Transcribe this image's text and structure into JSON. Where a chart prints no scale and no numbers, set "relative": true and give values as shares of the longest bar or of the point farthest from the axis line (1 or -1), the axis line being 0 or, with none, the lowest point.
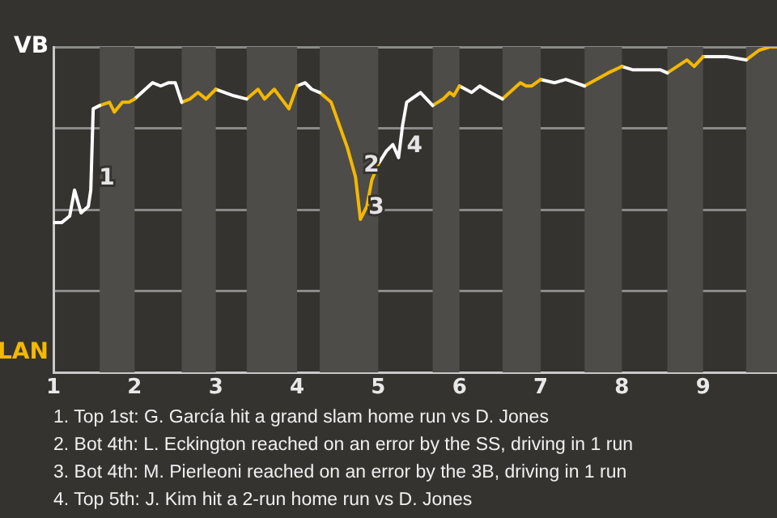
{
  "chart_data": {
    "type": "line",
    "marker": "none",
    "line_style": "solid",
    "grid": "y",
    "legend": false,
    "relative": true,
    "xlim": [
      1,
      9.91
    ],
    "xticks": [
      1,
      2,
      3,
      4,
      5,
      6,
      7,
      8,
      9
    ],
    "series": [
      {
        "name": "VB",
        "color": "#ffffff",
        "x": [
          1,
          1.1,
          1.2,
          1.26,
          1.34,
          1.43,
          1.46,
          1.49,
          1.57
        ],
        "values": [
          0.46,
          0.46,
          0.48,
          0.56,
          0.49,
          0.51,
          0.56,
          0.81,
          0.82
        ]
      },
      {
        "name": "LAN",
        "color": "#f4b800",
        "x": [
          1.57,
          1.69,
          1.75,
          1.85,
          1.93,
          2
        ],
        "values": [
          0.82,
          0.83,
          0.8,
          0.83,
          0.83,
          0.84
        ]
      },
      {
        "color": "#fefefe",
        "x": [
          2,
          2.22,
          2.32,
          2.42,
          2.5,
          2.58
        ],
        "values": [
          0.84,
          0.89,
          0.88,
          0.89,
          0.89,
          0.83
        ]
      },
      {
        "color": "#f4b800",
        "x": [
          2.58,
          2.68,
          2.78,
          2.88,
          3
        ],
        "values": [
          0.83,
          0.84,
          0.86,
          0.84,
          0.87
        ]
      },
      {
        "color": "#fdfdfd",
        "x": [
          3,
          3.22,
          3.38
        ],
        "values": [
          0.87,
          0.85,
          0.84
        ]
      },
      {
        "color": "#f4b800",
        "x": [
          3.38,
          3.52,
          3.6,
          3.72,
          3.9,
          4
        ],
        "values": [
          0.84,
          0.87,
          0.84,
          0.87,
          0.81,
          0.88
        ]
      },
      {
        "color": "#fcfcfc",
        "x": [
          4,
          4.1,
          4.18,
          4.28
        ],
        "values": [
          0.88,
          0.89,
          0.87,
          0.86
        ]
      },
      {
        "color": "#f4b800",
        "x": [
          4.28,
          4.42,
          4.52,
          4.62,
          4.72,
          4.78,
          4.86,
          4.92,
          5
        ],
        "values": [
          0.86,
          0.83,
          0.76,
          0.69,
          0.6,
          0.47,
          0.51,
          0.59,
          0.64
        ]
      },
      {
        "color": "#fbfbfb",
        "x": [
          5,
          5.1,
          5.18,
          5.25,
          5.3,
          5.35,
          5.52,
          5.67
        ],
        "values": [
          0.64,
          0.68,
          0.7,
          0.66,
          0.76,
          0.83,
          0.86,
          0.82
        ]
      },
      {
        "color": "#f4b800",
        "x": [
          5.67,
          5.8,
          5.88,
          5.93,
          6
        ],
        "values": [
          0.82,
          0.84,
          0.86,
          0.85,
          0.88
        ]
      },
      {
        "color": "#fafafa",
        "x": [
          6,
          6.15,
          6.25,
          6.38,
          6.53
        ],
        "values": [
          0.88,
          0.86,
          0.88,
          0.86,
          0.84
        ]
      },
      {
        "color": "#f4b800",
        "x": [
          6.53,
          6.75,
          6.82,
          6.89,
          7
        ],
        "values": [
          0.84,
          0.89,
          0.88,
          0.88,
          0.9
        ]
      },
      {
        "color": "#f9f9f9",
        "x": [
          7,
          7.17,
          7.31,
          7.54
        ],
        "values": [
          0.9,
          0.89,
          0.9,
          0.88
        ]
      },
      {
        "color": "#f4b800",
        "x": [
          7.54,
          7.83,
          8
        ],
        "values": [
          0.88,
          0.92,
          0.94
        ]
      },
      {
        "color": "#f8f8f8",
        "x": [
          8,
          8.13,
          8.47,
          8.56
        ],
        "values": [
          0.94,
          0.93,
          0.93,
          0.92
        ]
      },
      {
        "color": "#f4b800",
        "x": [
          8.56,
          8.8,
          8.89,
          9
        ],
        "values": [
          0.92,
          0.96,
          0.94,
          0.97
        ]
      },
      {
        "color": "#f7f7f7",
        "x": [
          9,
          9.29,
          9.53
        ],
        "values": [
          0.97,
          0.97,
          0.96
        ]
      },
      {
        "color": "#f4b800",
        "x": [
          9.53,
          9.69,
          9.82,
          9.91
        ],
        "values": [
          0.96,
          0.99,
          1,
          1
        ]
      }
    ],
    "bands": [
      {
        "axis": "x",
        "from": 1.57,
        "to": 2,
        "color": "#4e4c49"
      },
      {
        "axis": "x",
        "from": 2.58,
        "to": 3,
        "color": "#4e4c49"
      },
      {
        "axis": "x",
        "from": 3.38,
        "to": 4,
        "color": "#4e4c49"
      },
      {
        "axis": "x",
        "from": 4.28,
        "to": 5,
        "color": "#4e4c49"
      },
      {
        "axis": "x",
        "from": 5.67,
        "to": 6,
        "color": "#4e4c49"
      },
      {
        "axis": "x",
        "from": 6.53,
        "to": 7,
        "color": "#4e4c49"
      },
      {
        "axis": "x",
        "from": 7.54,
        "to": 8,
        "color": "#4e4c49"
      },
      {
        "axis": "x",
        "from": 8.56,
        "to": 9,
        "color": "#4e4c49"
      },
      {
        "axis": "x",
        "from": 9.53,
        "to": 9.91,
        "color": "#4e4c49"
      }
    ],
    "annotations": [
      {
        "text": "1",
        "x": 1.46,
        "y": 0.56
      },
      {
        "text": "2",
        "x": 4.72,
        "y": 0.6
      },
      {
        "text": "3",
        "x": 4.78,
        "y": 0.47
      },
      {
        "text": "4",
        "x": 5.25,
        "y": 0.66
      },
      "1. Top 1st: G. García hit a grand slam home run vs D. Jones",
      "2. Bot 4th: L. Eckington reached on an error by the SS, driving in 1 run",
      "3. Bot 4th: M. Pierleoni reached on an error by the 3B, driving in 1 run",
      "4. Top 5th: J. Kim hit a 2-run home run vs D. Jones"
    ]
  }
}
